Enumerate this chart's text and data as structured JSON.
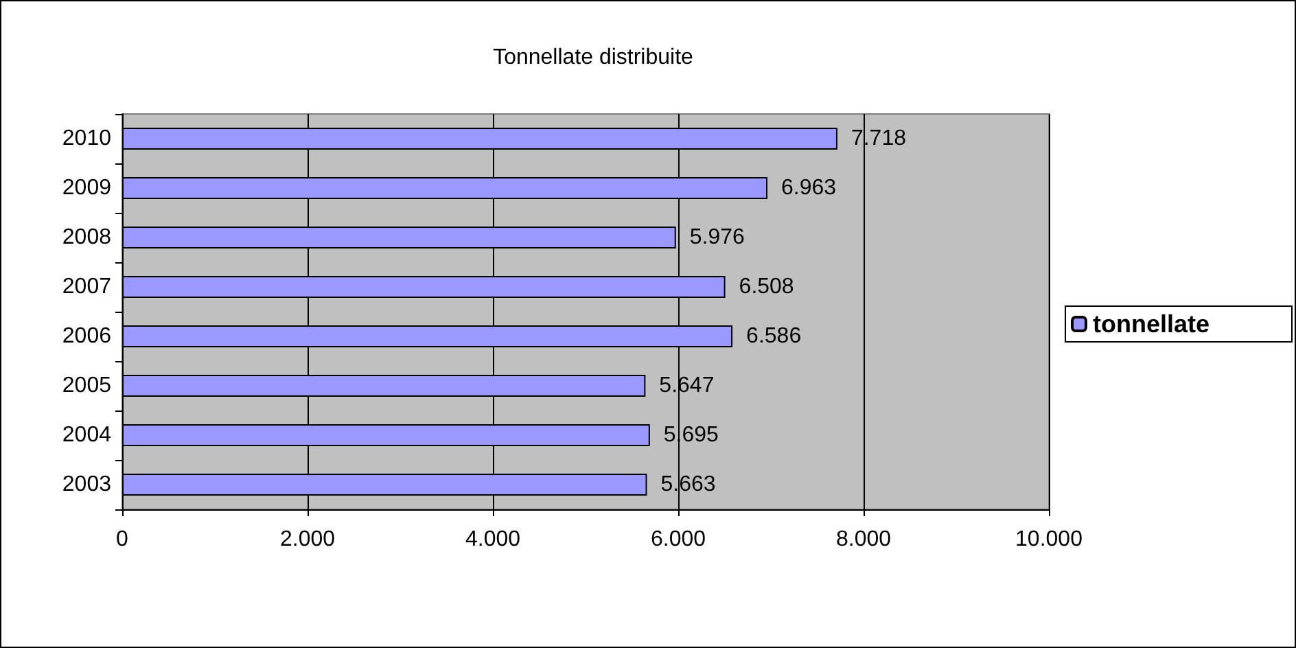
{
  "chart_data": {
    "type": "bar",
    "orientation": "horizontal",
    "title": "Tonnellate distribuite",
    "categories": [
      "2010",
      "2009",
      "2008",
      "2007",
      "2006",
      "2005",
      "2004",
      "2003"
    ],
    "series": [
      {
        "name": "tonnellate",
        "color": "#9999ff",
        "values": [
          7718,
          6963,
          5976,
          6508,
          6586,
          5647,
          5695,
          5663
        ],
        "value_labels": [
          "7.718",
          "6.963",
          "5.976",
          "6.508",
          "6.586",
          "5.647",
          "5.695",
          "5.663"
        ]
      }
    ],
    "xlim": [
      0,
      10000
    ],
    "xticks": [
      0,
      {
        "value": 2000,
        "label": "2.000"
      },
      {
        "value": 4000,
        "label": "4.000"
      },
      {
        "value": 6000,
        "label": "6.000"
      },
      {
        "value": 8000,
        "label": "8.000"
      },
      {
        "value": 10000,
        "label": "10.000"
      }
    ],
    "grid": "x",
    "legend": "right"
  }
}
